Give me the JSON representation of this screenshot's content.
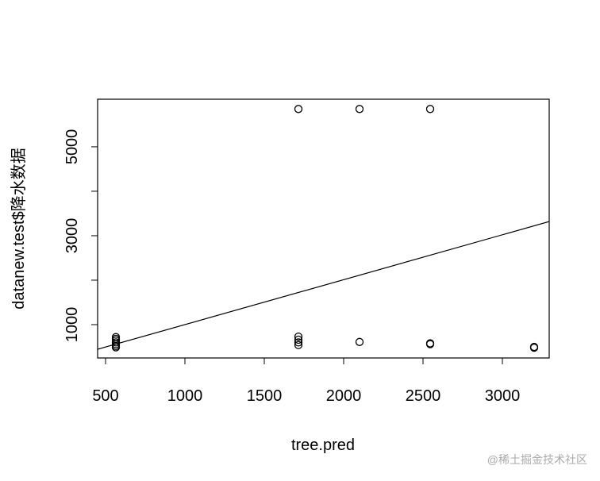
{
  "chart_data": {
    "type": "scatter",
    "x_label": "tree.pred",
    "y_label": "datanew.test$降水数据",
    "x": [
      565,
      565,
      565,
      565,
      565,
      565,
      565,
      1715,
      1715,
      1715,
      1715,
      1715,
      2100,
      2100,
      2545,
      2545,
      2545,
      3200,
      3200
    ],
    "values": [
      720,
      680,
      640,
      600,
      560,
      520,
      490,
      5850,
      730,
      660,
      600,
      540,
      5850,
      610,
      5850,
      580,
      560,
      500,
      480
    ],
    "color": "#000000",
    "abline": {
      "intercept": -9,
      "slope": 1.01
    },
    "xlim": [
      450,
      3295
    ],
    "xticks": [
      500,
      1000,
      1500,
      2000,
      2500,
      3000
    ],
    "ylim": [
      250,
      6070
    ],
    "yticks": [
      1000,
      3000,
      5000
    ],
    "yminorticks": [
      2000,
      4000
    ],
    "watermark": "@稀土掘金技术社区"
  }
}
